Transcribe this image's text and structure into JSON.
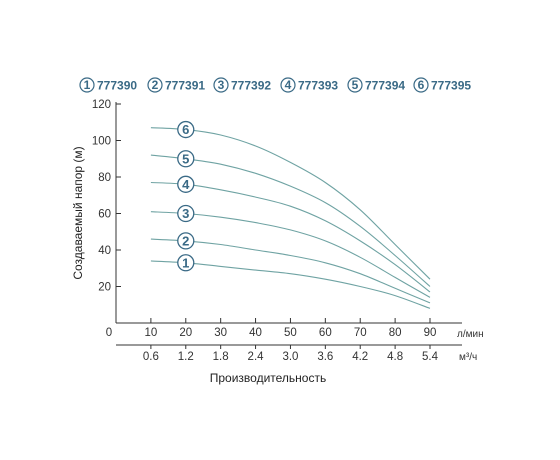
{
  "chart_data": {
    "type": "line",
    "title": "",
    "ylabel": "Создаваемый напор (м)",
    "xlabel": "Производительность",
    "x_unit": "л/мин",
    "x2_unit": "м³/ч",
    "xlim": [
      0,
      90
    ],
    "ylim": [
      0,
      120
    ],
    "y_ticks": [
      "20",
      "40",
      "60",
      "80",
      "100",
      "120"
    ],
    "x_ticks": [
      "0",
      "10",
      "20",
      "30",
      "40",
      "50",
      "60",
      "70",
      "80",
      "90"
    ],
    "x2_ticks": [
      "0.6",
      "1.2",
      "1.8",
      "2.4",
      "3.0",
      "3.6",
      "4.2",
      "4.8",
      "5.4"
    ],
    "legend": [
      {
        "num": "1",
        "label": "777390"
      },
      {
        "num": "2",
        "label": "777391"
      },
      {
        "num": "3",
        "label": "777392"
      },
      {
        "num": "4",
        "label": "777393"
      },
      {
        "num": "5",
        "label": "777394"
      },
      {
        "num": "6",
        "label": "777395"
      }
    ],
    "x": [
      0,
      10,
      20,
      30,
      40,
      50,
      60,
      70,
      80,
      90
    ],
    "series": [
      {
        "badge": "1",
        "values": [
          null,
          34,
          33,
          31,
          29,
          27,
          24,
          20,
          15,
          8
        ]
      },
      {
        "badge": "2",
        "values": [
          null,
          46,
          45,
          43,
          40,
          37,
          33,
          27,
          19,
          11
        ]
      },
      {
        "badge": "3",
        "values": [
          null,
          61,
          60,
          58,
          55,
          51,
          45,
          36,
          25,
          14
        ]
      },
      {
        "badge": "4",
        "values": [
          null,
          77,
          76,
          73,
          69,
          64,
          56,
          45,
          32,
          17
        ]
      },
      {
        "badge": "5",
        "values": [
          null,
          92,
          90,
          87,
          82,
          75,
          66,
          53,
          37,
          20
        ]
      },
      {
        "badge": "6",
        "values": [
          null,
          107,
          106,
          103,
          97,
          88,
          77,
          62,
          43,
          24
        ]
      }
    ],
    "colors": {
      "line": "#6fa3a3",
      "badge": "#3a6a86",
      "axis": "#333333"
    }
  }
}
